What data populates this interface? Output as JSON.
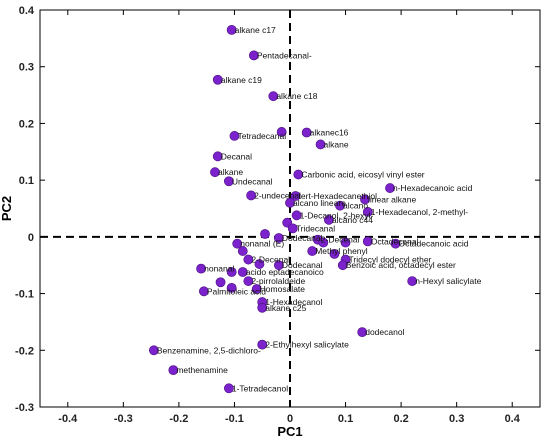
{
  "chart_data": {
    "type": "scatter",
    "title": "",
    "xlabel": "PC1",
    "ylabel": "PC2",
    "xlim": [
      -0.45,
      0.45
    ],
    "ylim": [
      -0.3,
      0.4
    ],
    "x_ticks": [
      "-0.4",
      "-0.3",
      "-0.2",
      "-0.1",
      "0",
      "0.1",
      "0.2",
      "0.3",
      "0.4"
    ],
    "x_tick_values": [
      -0.4,
      -0.3,
      -0.2,
      -0.1,
      0,
      0.1,
      0.2,
      0.3,
      0.4
    ],
    "y_ticks": [
      "-0.3",
      "-0.2",
      "-0.1",
      "0",
      "0.1",
      "0.2",
      "0.3",
      "0.4"
    ],
    "y_tick_values": [
      -0.3,
      -0.2,
      -0.1,
      0,
      0.1,
      0.2,
      0.3,
      0.4
    ],
    "reference_lines": {
      "x": 0,
      "y": 0,
      "style": "dashed"
    },
    "marker_color": "#7b22cc",
    "marker_edge": "#4a1180",
    "points": [
      {
        "x": -0.105,
        "y": 0.365,
        "label": "alkane c17"
      },
      {
        "x": -0.065,
        "y": 0.32,
        "label": "Pentadecanal-"
      },
      {
        "x": -0.13,
        "y": 0.277,
        "label": "alkane c19"
      },
      {
        "x": -0.03,
        "y": 0.248,
        "label": "alkane c18"
      },
      {
        "x": -0.1,
        "y": 0.178,
        "label": "Tetradecanal"
      },
      {
        "x": -0.015,
        "y": 0.185,
        "label": ""
      },
      {
        "x": 0.03,
        "y": 0.184,
        "label": "alkanec16"
      },
      {
        "x": 0.055,
        "y": 0.163,
        "label": "alkane"
      },
      {
        "x": -0.13,
        "y": 0.142,
        "label": "Decanal"
      },
      {
        "x": -0.135,
        "y": 0.114,
        "label": "alkane"
      },
      {
        "x": -0.11,
        "y": 0.098,
        "label": "Undecanal"
      },
      {
        "x": 0.015,
        "y": 0.11,
        "label": "Carbonic acid, eicosyl vinyl ester"
      },
      {
        "x": 0.18,
        "y": 0.086,
        "label": "n-Hexadecanoic acid"
      },
      {
        "x": 0.135,
        "y": 0.066,
        "label": "linear alkane"
      },
      {
        "x": -0.07,
        "y": 0.073,
        "label": "2-undecenal"
      },
      {
        "x": 0.01,
        "y": 0.072,
        "label": "tert-Hexadecanethiol"
      },
      {
        "x": 0.0,
        "y": 0.06,
        "label": "alcano lineare"
      },
      {
        "x": 0.09,
        "y": 0.055,
        "label": "alcano"
      },
      {
        "x": 0.14,
        "y": 0.044,
        "label": "1-Hexadecanol, 2-methyl-"
      },
      {
        "x": 0.012,
        "y": 0.038,
        "label": "1-Decanol, 2-hexyl-"
      },
      {
        "x": 0.07,
        "y": 0.03,
        "label": "alcano c44"
      },
      {
        "x": -0.005,
        "y": 0.025,
        "label": ""
      },
      {
        "x": 0.005,
        "y": 0.015,
        "label": "Tridecanal"
      },
      {
        "x": -0.045,
        "y": 0.005,
        "label": ""
      },
      {
        "x": -0.02,
        "y": -0.002,
        "label": "Dodecanal"
      },
      {
        "x": 0.05,
        "y": -0.005,
        "label": "2-Decenal"
      },
      {
        "x": 0.06,
        "y": -0.01,
        "label": ""
      },
      {
        "x": 0.1,
        "y": -0.01,
        "label": ""
      },
      {
        "x": 0.14,
        "y": -0.008,
        "label": "Octadecanal"
      },
      {
        "x": 0.19,
        "y": -0.012,
        "label": "Octadecanoic acid"
      },
      {
        "x": 0.04,
        "y": -0.025,
        "label": "Methyl phenyl"
      },
      {
        "x": 0.08,
        "y": -0.03,
        "label": ""
      },
      {
        "x": 0.1,
        "y": -0.04,
        "label": "Tridecyl dodecyl ether"
      },
      {
        "x": -0.095,
        "y": -0.012,
        "label": "nonanal (E)"
      },
      {
        "x": -0.085,
        "y": -0.025,
        "label": ""
      },
      {
        "x": -0.075,
        "y": -0.04,
        "label": "2-Decenal"
      },
      {
        "x": -0.055,
        "y": -0.048,
        "label": ""
      },
      {
        "x": -0.02,
        "y": -0.05,
        "label": "Dodecanal"
      },
      {
        "x": 0.095,
        "y": -0.05,
        "label": "Benzoic acid, octadecyl ester"
      },
      {
        "x": -0.16,
        "y": -0.056,
        "label": "nonanal"
      },
      {
        "x": -0.105,
        "y": -0.062,
        "label": ""
      },
      {
        "x": -0.085,
        "y": -0.062,
        "label": "acido eptadecanoico"
      },
      {
        "x": -0.075,
        "y": -0.078,
        "label": "2-pirrolaldeide"
      },
      {
        "x": -0.125,
        "y": -0.08,
        "label": ""
      },
      {
        "x": -0.105,
        "y": -0.09,
        "label": ""
      },
      {
        "x": -0.155,
        "y": -0.096,
        "label": "Palmitoleic acid"
      },
      {
        "x": -0.06,
        "y": -0.092,
        "label": "Homosalate"
      },
      {
        "x": 0.22,
        "y": -0.078,
        "label": "n-Hexyl salicylate"
      },
      {
        "x": -0.05,
        "y": -0.115,
        "label": "1-Hexadecanol"
      },
      {
        "x": -0.05,
        "y": -0.125,
        "label": "alkane c25"
      },
      {
        "x": 0.13,
        "y": -0.168,
        "label": "dodecanol"
      },
      {
        "x": -0.05,
        "y": -0.19,
        "label": "2-Ethylhexyl salicylate"
      },
      {
        "x": -0.245,
        "y": -0.2,
        "label": "Benzenamine, 2,5-dichloro-"
      },
      {
        "x": -0.21,
        "y": -0.235,
        "label": "methenamine"
      },
      {
        "x": -0.11,
        "y": -0.267,
        "label": "1-Tetradecanol"
      }
    ]
  }
}
